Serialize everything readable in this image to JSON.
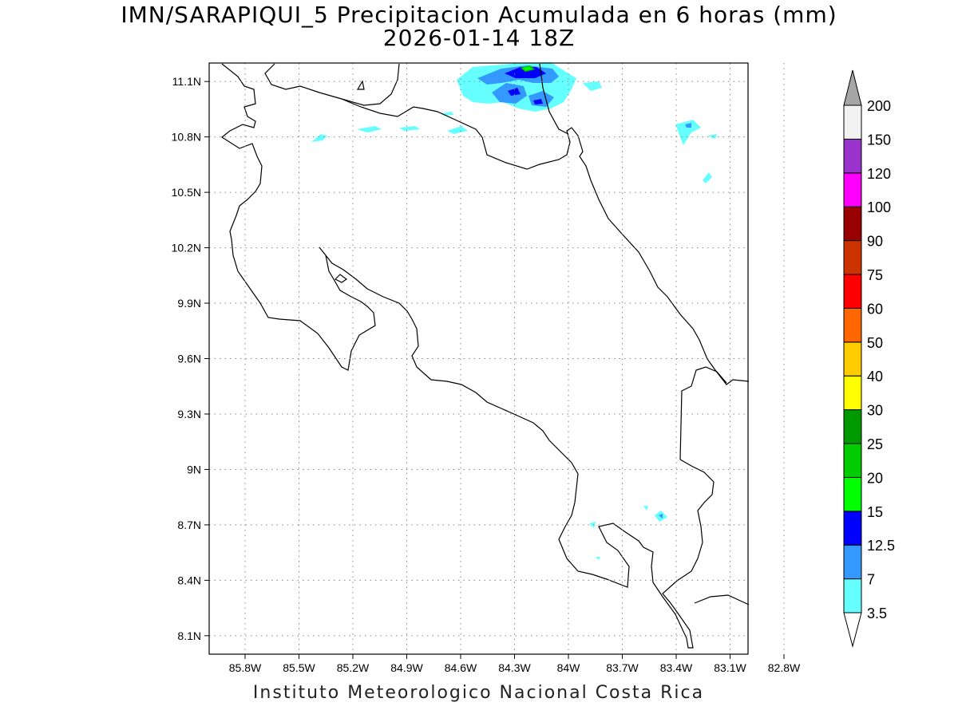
{
  "title": "IMN/SARAPIQUI_5 Precipitacion Acumulada en 6 horas (mm)",
  "subtitle": "2026-01-14 18Z",
  "footer": "Instituto Meteorologico Nacional Costa Rica",
  "map": {
    "lon_range": [
      -86.0,
      -83.0
    ],
    "lat_range": [
      8.0,
      11.2
    ],
    "lon_ticks": [
      {
        "value": -85.8,
        "label": "85.8W"
      },
      {
        "value": -85.5,
        "label": "85.5W"
      },
      {
        "value": -85.2,
        "label": "85.2W"
      },
      {
        "value": -84.9,
        "label": "84.9W"
      },
      {
        "value": -84.6,
        "label": "84.6W"
      },
      {
        "value": -84.3,
        "label": "84.3W"
      },
      {
        "value": -84.0,
        "label": "84W"
      },
      {
        "value": -83.7,
        "label": "83.7W"
      },
      {
        "value": -83.4,
        "label": "83.4W"
      },
      {
        "value": -83.1,
        "label": "83.1W"
      },
      {
        "value": -82.8,
        "label": "82.8W"
      }
    ],
    "lat_ticks": [
      {
        "value": 11.1,
        "label": "11.1N"
      },
      {
        "value": 10.8,
        "label": "10.8N"
      },
      {
        "value": 10.5,
        "label": "10.5N"
      },
      {
        "value": 10.2,
        "label": "10.2N"
      },
      {
        "value": 9.9,
        "label": "9.9N"
      },
      {
        "value": 9.6,
        "label": "9.6N"
      },
      {
        "value": 9.3,
        "label": "9.3N"
      },
      {
        "value": 9.0,
        "label": "9N"
      },
      {
        "value": 8.7,
        "label": "8.7N"
      },
      {
        "value": 8.4,
        "label": "8.4N"
      },
      {
        "value": 8.1,
        "label": "8.1N"
      }
    ],
    "grid": true
  },
  "colorbar": {
    "levels": [
      {
        "label": "3.5",
        "color": "#66ffff"
      },
      {
        "label": "7",
        "color": "#3399ff"
      },
      {
        "label": "12.5",
        "color": "#0000ff"
      },
      {
        "label": "15",
        "color": "#00ff00"
      },
      {
        "label": "20",
        "color": "#00cc00"
      },
      {
        "label": "25",
        "color": "#009900"
      },
      {
        "label": "30",
        "color": "#ffff00"
      },
      {
        "label": "40",
        "color": "#ffcc00"
      },
      {
        "label": "50",
        "color": "#ff6600"
      },
      {
        "label": "60",
        "color": "#ff0000"
      },
      {
        "label": "75",
        "color": "#cc3300"
      },
      {
        "label": "90",
        "color": "#990000"
      },
      {
        "label": "100",
        "color": "#ff00ff"
      },
      {
        "label": "120",
        "color": "#9933cc"
      },
      {
        "label": "150",
        "color": "#f2f2f2"
      },
      {
        "label": "200",
        "color": "#a6a6a6"
      }
    ]
  }
}
